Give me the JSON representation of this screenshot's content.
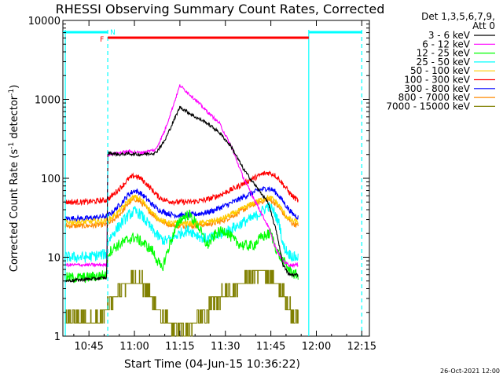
{
  "chart_data": {
    "type": "line",
    "title": "RHESSI Observing Summary Count Rates, Corrected",
    "xlabel": "Start Time (04-Jun-15 10:36:22)",
    "ylabel_main": "Corrected Count Rate (s",
    "ylabel_exp1": "-1",
    "ylabel_mid": " detector",
    "ylabel_exp2": "-1",
    "ylabel_end": ")",
    "yscale": "log",
    "ylim": [
      1,
      10000
    ],
    "xlim_min": [
      36.4,
      137.5
    ],
    "x_ticks": [
      {
        "t": 45,
        "label": "10:45"
      },
      {
        "t": 60,
        "label": "11:00"
      },
      {
        "t": 75,
        "label": "11:15"
      },
      {
        "t": 90,
        "label": "11:30"
      },
      {
        "t": 105,
        "label": "11:45"
      },
      {
        "t": 120,
        "label": "12:00"
      },
      {
        "t": 135,
        "label": "12:15"
      }
    ],
    "y_ticks": [
      {
        "v": 10000,
        "label": "10000"
      },
      {
        "v": 1000,
        "label": "1000"
      },
      {
        "v": 100,
        "label": "100"
      },
      {
        "v": 10,
        "label": "10"
      },
      {
        "v": 1,
        "label": "1"
      }
    ],
    "legend_header": [
      "Det 1,3,5,6,7,9,",
      "Att 0"
    ],
    "legend_position": "top-right",
    "series": [
      {
        "name": "3 - 6 keV",
        "color": "#000000",
        "x": [
          37,
          50.9,
          51.2,
          55,
          58,
          62,
          67,
          70,
          75,
          80,
          84,
          88,
          92,
          96,
          100,
          104,
          107,
          109,
          111,
          113,
          114
        ],
        "values": [
          5,
          5.5,
          210,
          200,
          205,
          200,
          210,
          300,
          800,
          600,
          500,
          380,
          250,
          130,
          80,
          50,
          20,
          8,
          6,
          6,
          6
        ]
      },
      {
        "name": "6 - 12 keV",
        "color": "#ff00ff",
        "x": [
          37,
          50.9,
          51.2,
          55,
          58,
          62,
          67,
          70,
          75,
          80,
          84,
          88,
          92,
          96,
          100,
          104,
          107,
          109,
          111,
          113,
          114
        ],
        "values": [
          8,
          8,
          200,
          210,
          220,
          210,
          230,
          400,
          1500,
          1000,
          700,
          500,
          250,
          100,
          50,
          25,
          12,
          9,
          8,
          8,
          8
        ]
      },
      {
        "name": "12 - 25 keV",
        "color": "#00ff00",
        "x": [
          37,
          44,
          50.8,
          51.2,
          53,
          57,
          60,
          63,
          66,
          69,
          72,
          75,
          78,
          81,
          84,
          87,
          90,
          93,
          96,
          99,
          102,
          105,
          107,
          109,
          111,
          113,
          114
        ],
        "values": [
          5.5,
          5.5,
          6,
          11,
          13,
          16,
          18,
          15,
          12,
          7,
          16,
          30,
          35,
          25,
          14,
          20,
          22,
          16,
          14,
          14,
          18,
          20,
          12,
          9,
          7,
          6,
          6
        ]
      },
      {
        "name": "25 - 50 keV",
        "color": "#00ffff",
        "x": [
          37,
          44,
          50.8,
          51.2,
          53,
          56,
          58,
          60,
          62,
          64,
          66,
          68,
          70,
          72,
          74,
          76,
          78,
          80,
          82,
          84,
          86,
          88,
          90,
          92,
          94,
          96,
          98,
          100,
          102,
          104,
          106,
          108,
          109,
          111,
          113,
          114
        ],
        "values": [
          10,
          10,
          11,
          16,
          20,
          28,
          34,
          38,
          35,
          28,
          22,
          18,
          16,
          17,
          19,
          21,
          22,
          20,
          18,
          17,
          18,
          19,
          21,
          23,
          25,
          28,
          30,
          33,
          38,
          45,
          38,
          25,
          14,
          11,
          10,
          10
        ]
      },
      {
        "name": "50 - 100 keV",
        "color": "#ffcc00",
        "x": [
          37,
          44,
          51,
          53,
          56,
          58,
          60,
          62,
          64,
          66,
          68,
          70,
          72,
          74,
          76,
          78,
          80,
          82,
          84,
          86,
          88,
          90,
          92,
          94,
          96,
          98,
          100,
          102,
          104,
          106,
          108,
          110,
          112,
          114
        ],
        "values": [
          28,
          28,
          29,
          33,
          42,
          52,
          58,
          55,
          45,
          36,
          31,
          28,
          27,
          27,
          27,
          27,
          27,
          27,
          28,
          29,
          30,
          32,
          35,
          38,
          42,
          46,
          50,
          54,
          57,
          54,
          44,
          33,
          29,
          28
        ]
      },
      {
        "name": "100 - 300 keV",
        "color": "#ff0000",
        "x": [
          37,
          44,
          51,
          53,
          56,
          58,
          60,
          62,
          64,
          66,
          68,
          70,
          72,
          74,
          76,
          78,
          80,
          82,
          84,
          86,
          88,
          90,
          92,
          94,
          96,
          98,
          100,
          102,
          104,
          106,
          108,
          110,
          112,
          114
        ],
        "values": [
          50,
          50,
          53,
          62,
          80,
          98,
          108,
          100,
          85,
          70,
          58,
          53,
          51,
          50,
          50,
          50,
          51,
          52,
          54,
          57,
          61,
          66,
          72,
          78,
          86,
          94,
          103,
          112,
          118,
          112,
          95,
          75,
          60,
          52
        ]
      },
      {
        "name": "300 - 800 keV",
        "color": "#0000ff",
        "x": [
          37,
          44,
          51,
          53,
          56,
          58,
          60,
          62,
          64,
          66,
          68,
          70,
          72,
          74,
          76,
          78,
          80,
          82,
          84,
          86,
          88,
          90,
          92,
          94,
          96,
          98,
          100,
          102,
          104,
          106,
          108,
          110,
          112,
          114
        ],
        "values": [
          31,
          31,
          33,
          38,
          50,
          62,
          70,
          65,
          55,
          46,
          40,
          37,
          35,
          34,
          34,
          34,
          35,
          36,
          37,
          39,
          42,
          45,
          49,
          53,
          58,
          63,
          68,
          72,
          75,
          70,
          58,
          45,
          36,
          32
        ]
      },
      {
        "name": "800 - 7000 keV",
        "color": "#ff8800",
        "x": [
          37,
          44,
          51,
          53,
          56,
          58,
          60,
          62,
          64,
          66,
          68,
          70,
          72,
          74,
          76,
          78,
          80,
          82,
          84,
          86,
          88,
          90,
          92,
          94,
          96,
          98,
          100,
          102,
          104,
          106,
          108,
          110,
          112,
          114
        ],
        "values": [
          25,
          25,
          26,
          29,
          38,
          48,
          55,
          50,
          42,
          35,
          30,
          27,
          26,
          25,
          25,
          25,
          25,
          26,
          26,
          27,
          28,
          30,
          33,
          36,
          40,
          44,
          48,
          51,
          54,
          50,
          41,
          32,
          27,
          25
        ]
      },
      {
        "name": "7000 - 15000 keV",
        "color": "#808000",
        "x": [
          37,
          48,
          50,
          53,
          56,
          58,
          60,
          62,
          64,
          66,
          68,
          70,
          72,
          74,
          76,
          78,
          80,
          82,
          84,
          86,
          88,
          90,
          92,
          94,
          96,
          98,
          100,
          102,
          104,
          106,
          108,
          110,
          112,
          114
        ],
        "values": [
          1.6,
          1.6,
          2,
          3,
          4,
          5,
          5.5,
          5,
          4,
          3,
          2,
          1.6,
          1.3,
          1.2,
          1.2,
          1.3,
          1.5,
          1.7,
          2,
          2.5,
          3,
          3.5,
          4,
          4.5,
          5,
          5.5,
          6,
          6.5,
          6,
          5,
          4,
          3,
          2,
          1.6
        ]
      }
    ],
    "segments": [
      {
        "label": "N",
        "color": "#00ffff",
        "ranges": [
          [
            36.4,
            51.2
          ],
          [
            117.5,
            135
          ]
        ]
      },
      {
        "label": "F",
        "color": "#ff0000",
        "ranges": [
          [
            51.2,
            117.5
          ]
        ]
      }
    ],
    "vlines": [
      {
        "t": 37.2,
        "color": "#00ffff",
        "style": "solid"
      },
      {
        "t": 51.2,
        "color": "#00ffff",
        "style": "dashed"
      },
      {
        "t": 117.5,
        "color": "#00ffff",
        "style": "solid"
      },
      {
        "t": 135,
        "color": "#00ffff",
        "style": "dashed"
      }
    ],
    "stamp": "26-Oct-2021 12:00"
  }
}
